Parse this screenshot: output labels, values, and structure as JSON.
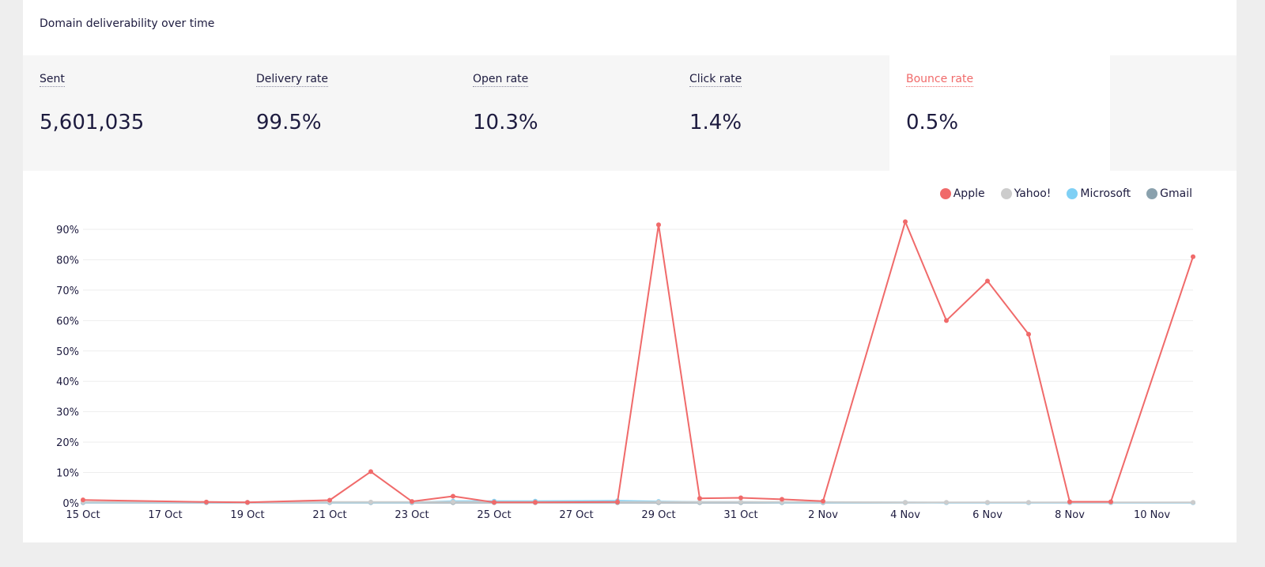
{
  "card": {
    "title": "Domain deliverability over time"
  },
  "metrics": [
    {
      "label": "Sent",
      "value": "5,601,035"
    },
    {
      "label": "Delivery rate",
      "value": "99.5%"
    },
    {
      "label": "Open rate",
      "value": "10.3%"
    },
    {
      "label": "Click rate",
      "value": "1.4%"
    },
    {
      "label": "Bounce rate",
      "value": "0.5%",
      "active": true
    }
  ],
  "colors": {
    "apple": "#f06a6a",
    "yahoo": "#cccccc",
    "microsoft": "#7fd0f5",
    "gmail": "#8aa1ad",
    "accent": "#f06a6a"
  },
  "chart_data": {
    "type": "line",
    "title": "",
    "xlabel": "",
    "ylabel": "",
    "x": [
      "15 Oct",
      "16 Oct",
      "17 Oct",
      "18 Oct",
      "19 Oct",
      "20 Oct",
      "21 Oct",
      "22 Oct",
      "23 Oct",
      "24 Oct",
      "25 Oct",
      "26 Oct",
      "27 Oct",
      "28 Oct",
      "29 Oct",
      "30 Oct",
      "31 Oct",
      "1 Nov",
      "2 Nov",
      "3 Nov",
      "4 Nov",
      "5 Nov",
      "6 Nov",
      "7 Nov",
      "8 Nov",
      "9 Nov",
      "10 Nov",
      "11 Nov"
    ],
    "x_tick_labels": [
      "15 Oct",
      "17 Oct",
      "19 Oct",
      "21 Oct",
      "23 Oct",
      "25 Oct",
      "27 Oct",
      "29 Oct",
      "31 Oct",
      "2 Nov",
      "4 Nov",
      "6 Nov",
      "8 Nov",
      "10 Nov"
    ],
    "ylim": [
      0,
      90
    ],
    "y_ticks": [
      0,
      10,
      20,
      30,
      40,
      50,
      60,
      70,
      80,
      90
    ],
    "y_tick_labels": [
      "0%",
      "10%",
      "20%",
      "30%",
      "40%",
      "50%",
      "60%",
      "70%",
      "80%",
      "90%"
    ],
    "grid": true,
    "legend_position": "top-right",
    "series": [
      {
        "name": "Apple",
        "color_key": "apple",
        "values": [
          1.0,
          null,
          null,
          0.3,
          0.2,
          null,
          0.9,
          10.3,
          0.5,
          2.2,
          0.2,
          0.2,
          null,
          0.3,
          91.5,
          1.5,
          1.7,
          1.2,
          0.6,
          null,
          92.5,
          60.0,
          73.0,
          55.5,
          0.4,
          0.4,
          null,
          81.0
        ]
      },
      {
        "name": "Yahoo!",
        "color_key": "yahoo",
        "values": [
          0.3,
          null,
          null,
          0.3,
          0.2,
          null,
          0.3,
          0.3,
          0.3,
          0.3,
          0.3,
          0.3,
          null,
          0.3,
          0.3,
          0.3,
          0.3,
          0.3,
          0.3,
          null,
          0.2,
          0.2,
          0.2,
          0.2,
          0.2,
          0.2,
          null,
          0.2
        ]
      },
      {
        "name": "Microsoft",
        "color_key": "microsoft",
        "values": [
          0.2,
          null,
          null,
          0.2,
          0.2,
          null,
          0.2,
          0.2,
          0.2,
          0.6,
          0.6,
          0.6,
          null,
          0.7,
          0.5,
          0.3,
          0.3,
          0.2,
          0.2,
          null,
          0.2,
          0.1,
          0.1,
          0.1,
          0.1,
          0.1,
          null,
          0.1
        ]
      },
      {
        "name": "Gmail",
        "color_key": "gmail",
        "values": [
          0.1,
          null,
          null,
          0.1,
          0.1,
          null,
          0.1,
          0.1,
          0.1,
          0.1,
          0.1,
          0.1,
          null,
          0.1,
          0.1,
          0.1,
          0.1,
          0.1,
          0.1,
          null,
          0.1,
          0.1,
          0.1,
          0.1,
          0.1,
          0.1,
          null,
          0.1
        ]
      }
    ]
  }
}
